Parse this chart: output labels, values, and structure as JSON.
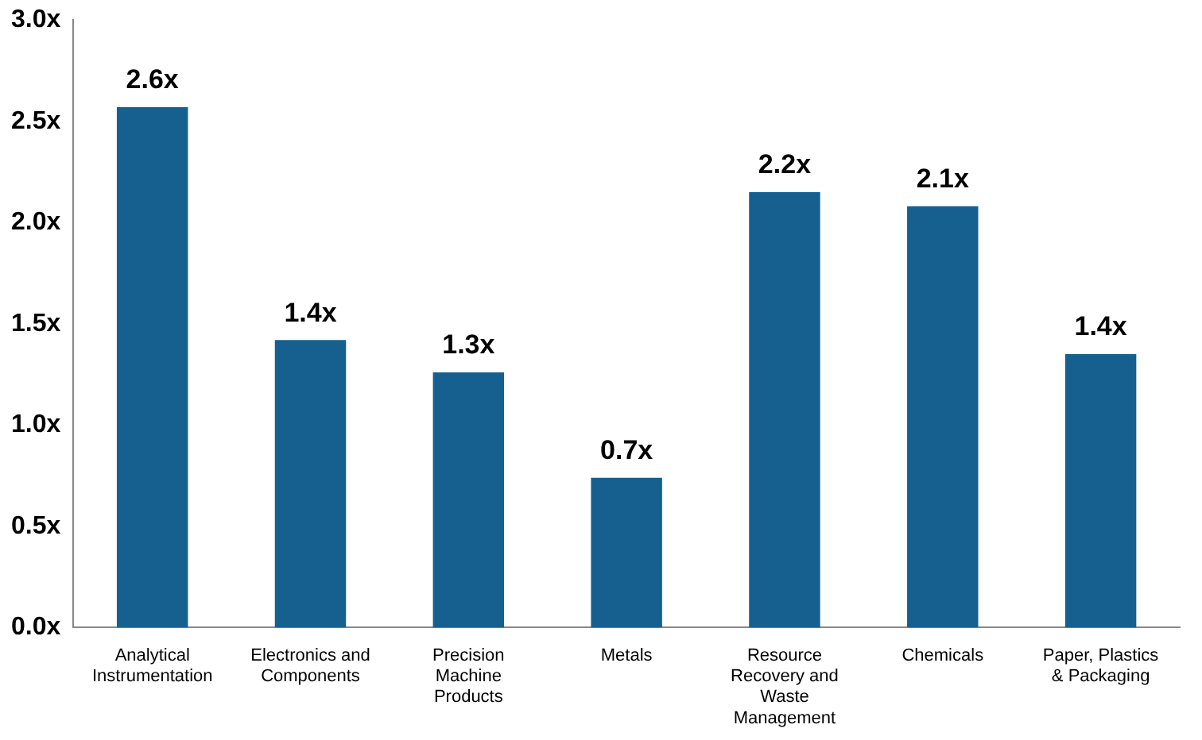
{
  "chart_data": {
    "type": "bar",
    "categories": [
      "Analytical Instrumentation",
      "Electronics and Components",
      "Precision Machine Products",
      "Metals",
      "Resource Recovery and Waste Management",
      "Chemicals",
      "Paper, Plastics & Packaging"
    ],
    "values": [
      2.57,
      1.42,
      1.26,
      0.74,
      2.15,
      2.08,
      1.35
    ],
    "value_labels": [
      "2.6x",
      "1.4x",
      "1.3x",
      "0.7x",
      "2.2x",
      "2.1x",
      "1.4x"
    ],
    "color": "#15608f",
    "ylim": [
      0,
      3
    ],
    "yticks": [
      {
        "value": 0,
        "label": "0.0x"
      },
      {
        "value": 0.5,
        "label": "0.5x"
      },
      {
        "value": 1,
        "label": "1.0x"
      },
      {
        "value": 1.5,
        "label": "1.5x"
      },
      {
        "value": 2,
        "label": "2.0x"
      },
      {
        "value": 2.5,
        "label": "2.5x"
      },
      {
        "value": 3,
        "label": "3.0x"
      }
    ],
    "grid": false,
    "legend": false
  }
}
